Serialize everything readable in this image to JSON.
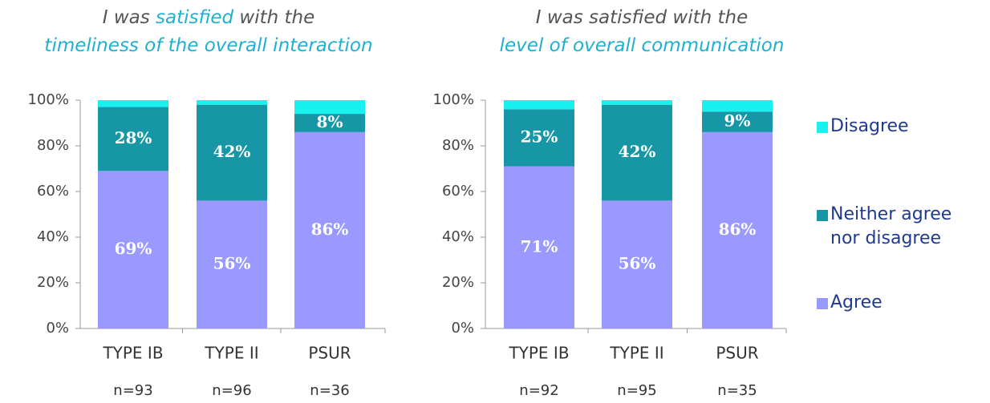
{
  "chart_data": [
    {
      "type": "stacked_bar",
      "title": [
        [
          {
            "text": "I was ",
            "color": "#555555"
          },
          {
            "text": "satisfied",
            "color": "#1fb0d0"
          },
          {
            "text": " with the",
            "color": "#555555"
          }
        ],
        [
          {
            "text": "timeliness of the overall interaction",
            "color": "#1fb0d0"
          }
        ]
      ],
      "categories": [
        "TYPE IB",
        "TYPE II",
        "PSUR"
      ],
      "n_labels": [
        "n=93",
        "n=96",
        "n=36"
      ],
      "ylim": [
        0,
        100
      ],
      "yticks": [
        {
          "value": 0,
          "label": "0%"
        },
        {
          "value": 20,
          "label": "20%"
        },
        {
          "value": 40,
          "label": "40%"
        },
        {
          "value": 60,
          "label": "60%"
        },
        {
          "value": 80,
          "label": "80%"
        },
        {
          "value": 100,
          "label": "100%"
        }
      ],
      "series": [
        {
          "name": "Agree",
          "color": "#9999ff",
          "values": [
            69,
            56,
            86
          ],
          "value_labels": [
            "69%",
            "56%",
            "86%"
          ]
        },
        {
          "name": "Neither agree nor disagree",
          "color": "#1797a6",
          "values": [
            28,
            42,
            8
          ],
          "value_labels": [
            "28%",
            "42%",
            "8%"
          ]
        },
        {
          "name": "Disagree",
          "color": "#19f0f0",
          "values": [
            3,
            2,
            6
          ]
        }
      ]
    },
    {
      "type": "stacked_bar",
      "title": [
        [
          {
            "text": "I was satisfied with the",
            "color": "#555555"
          }
        ],
        [
          {
            "text": "level of overall communication",
            "color": "#1fb0d0"
          }
        ]
      ],
      "categories": [
        "TYPE IB",
        "TYPE II",
        "PSUR"
      ],
      "n_labels": [
        "n=92",
        "n=95",
        "n=35"
      ],
      "ylim": [
        0,
        100
      ],
      "yticks": [
        {
          "value": 0,
          "label": "0%"
        },
        {
          "value": 20,
          "label": "20%"
        },
        {
          "value": 40,
          "label": "40%"
        },
        {
          "value": 60,
          "label": "60%"
        },
        {
          "value": 80,
          "label": "80%"
        },
        {
          "value": 100,
          "label": "100%"
        }
      ],
      "legend": "right",
      "series": [
        {
          "name": "Agree",
          "color": "#9999ff",
          "values": [
            71,
            56,
            86
          ],
          "value_labels": [
            "71%",
            "56%",
            "86%"
          ]
        },
        {
          "name": "Neither agree nor disagree",
          "color": "#1797a6",
          "values": [
            25,
            42,
            9
          ],
          "value_labels": [
            "25%",
            "42%",
            "9%"
          ]
        },
        {
          "name": "Disagree",
          "color": "#19f0f0",
          "values": [
            4,
            2,
            5
          ]
        }
      ]
    }
  ]
}
